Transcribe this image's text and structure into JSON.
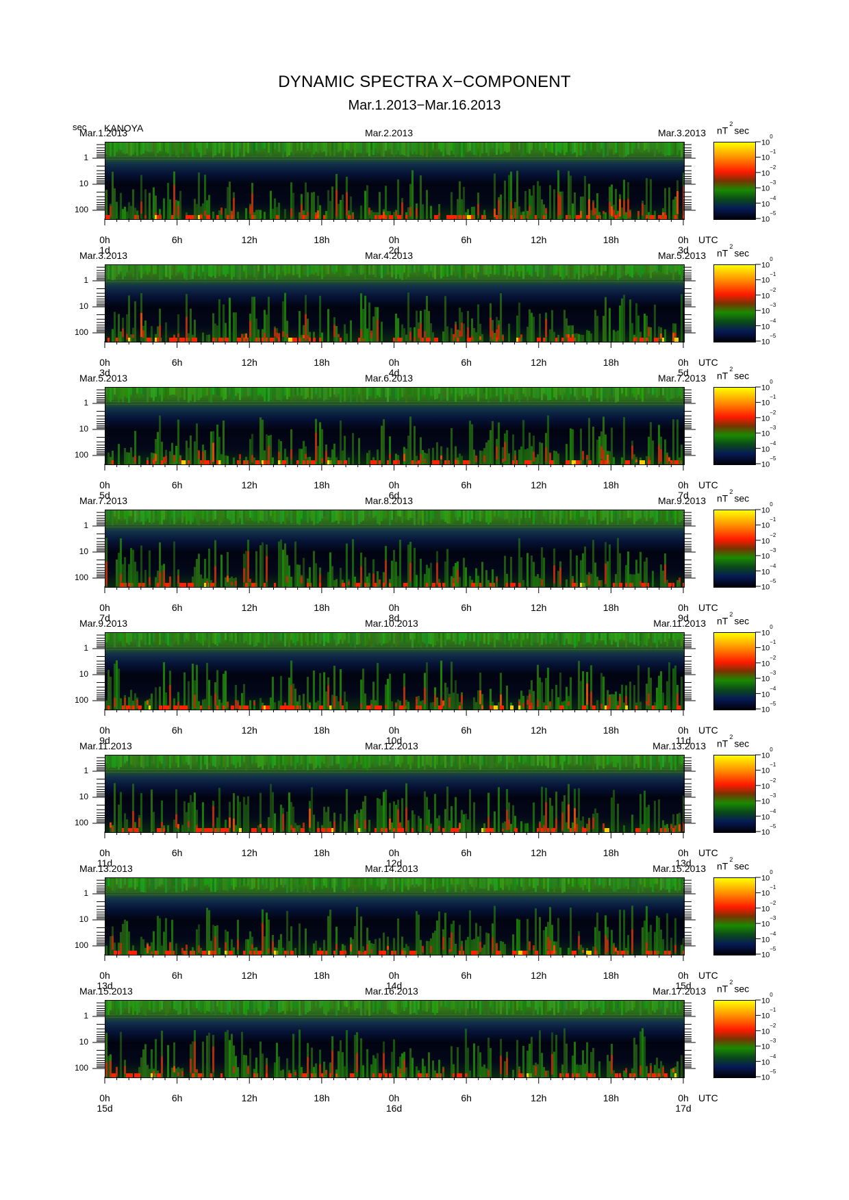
{
  "title": "DYNAMIC SPECTRA X−COMPONENT",
  "subtitle": "Mar.1.2013−Mar.16.2013",
  "y_unit": "sec",
  "station": "KANOYA",
  "colorbar_unit_base": "nT",
  "colorbar_unit_exp": "2",
  "colorbar_unit_tail": "sec",
  "colorbar_ticks": [
    {
      "base": "10",
      "exp": "0"
    },
    {
      "base": "10",
      "exp": "−1"
    },
    {
      "base": "10",
      "exp": "−2"
    },
    {
      "base": "10",
      "exp": "−3"
    },
    {
      "base": "10",
      "exp": "−4"
    },
    {
      "base": "10",
      "exp": "−5"
    }
  ],
  "colors": {
    "high": "#ffff00",
    "mid_high": "#ff1a00",
    "mid": "#1a8a00",
    "low": "#061a55",
    "floor": "#000008"
  },
  "chart_data": {
    "type": "heatmap",
    "x_tick_labels": [
      "0h",
      "6h",
      "12h",
      "18h",
      "0h",
      "6h",
      "12h",
      "18h",
      "0h"
    ],
    "x_axis_label": "UTC",
    "y_tick_labels": [
      "1",
      "10",
      "100"
    ],
    "y_scale": "log",
    "colorbar_range_log10": [
      -5,
      0
    ],
    "panels": [
      {
        "dates": [
          "Mar.1.2013",
          "Mar.2.2013",
          "Mar.3.2013"
        ],
        "days": [
          "1d",
          "2d",
          "3d"
        ]
      },
      {
        "dates": [
          "Mar.3.2013",
          "Mar.4.2013",
          "Mar.5.2013"
        ],
        "days": [
          "3d",
          "4d",
          "5d"
        ]
      },
      {
        "dates": [
          "Mar.5.2013",
          "Mar.6.2013",
          "Mar.7.2013"
        ],
        "days": [
          "5d",
          "6d",
          "7d"
        ]
      },
      {
        "dates": [
          "Mar.7.2013",
          "Mar.8.2013",
          "Mar.9.2013"
        ],
        "days": [
          "7d",
          "8d",
          "9d"
        ]
      },
      {
        "dates": [
          "Mar.9.2013",
          "Mar.10.2013",
          "Mar.11.2013"
        ],
        "days": [
          "9d",
          "10d",
          "11d"
        ]
      },
      {
        "dates": [
          "Mar.11.2013",
          "Mar.12.2013",
          "Mar.13.2013"
        ],
        "days": [
          "11d",
          "12d",
          "13d"
        ]
      },
      {
        "dates": [
          "Mar.13.2013",
          "Mar.14.2013",
          "Mar.15.2013"
        ],
        "days": [
          "13d",
          "14d",
          "15d"
        ]
      },
      {
        "dates": [
          "Mar.15.2013",
          "Mar.16.2013",
          "Mar.17.2013"
        ],
        "days": [
          "15d",
          "16d",
          "17d"
        ]
      }
    ]
  }
}
